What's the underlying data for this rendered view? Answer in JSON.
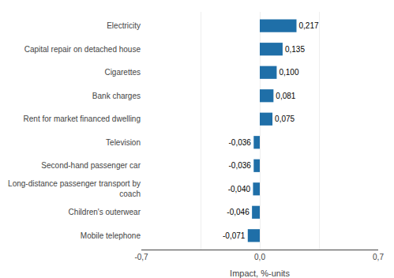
{
  "chart_data": {
    "type": "bar",
    "orientation": "horizontal",
    "categories": [
      "Mobile telephone",
      "Children's outerwear",
      "Long-distance passenger transport by\ncoach",
      "Second-hand passenger car",
      "Television",
      "Rent for market financed dwelling",
      "Bank charges",
      "Cigarettes",
      "Capital repair on detached house",
      "Electricity"
    ],
    "values": [
      -0.071,
      -0.046,
      -0.04,
      -0.036,
      -0.036,
      0.075,
      0.081,
      0.1,
      0.135,
      0.217
    ],
    "value_labels": [
      "-0,071",
      "-0,046",
      "-0,040",
      "-0,036",
      "-0,036",
      "0,075",
      "0,081",
      "0,100",
      "0,135",
      "0,217"
    ],
    "data_labels": true,
    "color": "#1f6fa8",
    "xlabel": "Impact, %-units",
    "xlim": [
      -0.7,
      0.7
    ],
    "xticks": [
      {
        "value": -0.7,
        "label": "-0,7"
      },
      {
        "value": -0.35,
        "label": null
      },
      {
        "value": 0.0,
        "label": "0,0"
      },
      {
        "value": 0.35,
        "label": null
      },
      {
        "value": 0.7,
        "label": "0,7"
      }
    ],
    "grid": true
  }
}
